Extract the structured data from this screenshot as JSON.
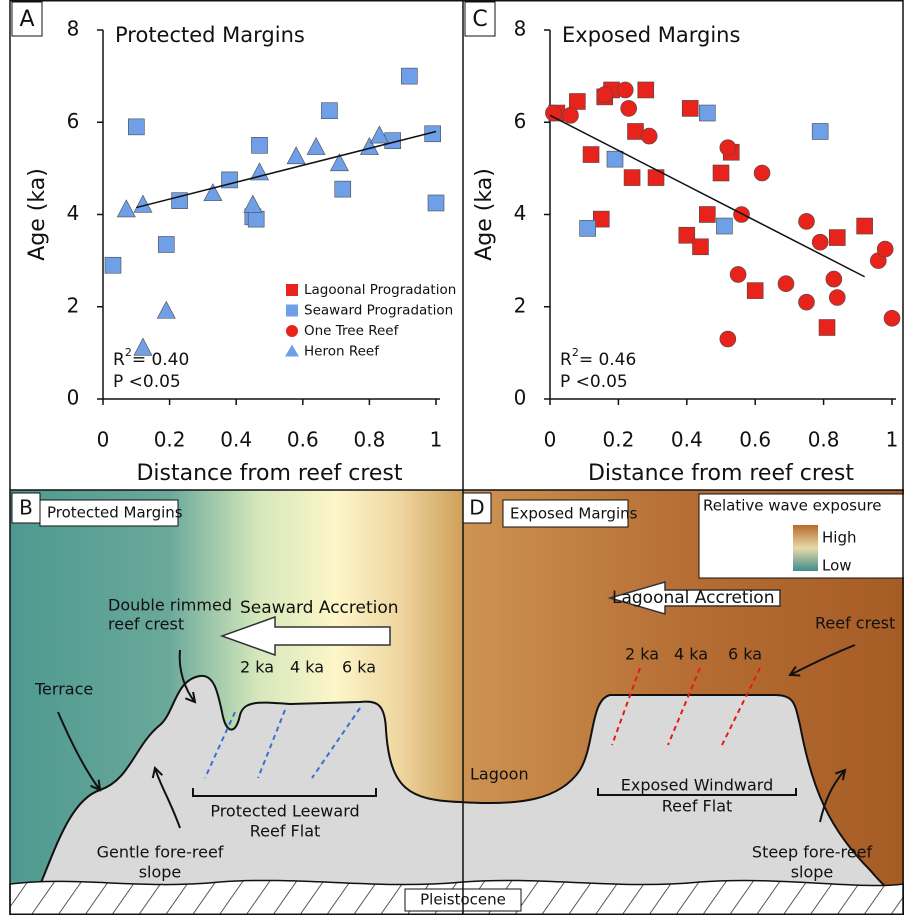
{
  "chart_data": [
    {
      "type": "scatter",
      "panel_label": "A",
      "title": "Protected Margins",
      "x_label": "Distance from reef crest",
      "y_label": "Age (ka)",
      "xlim": [
        0,
        1
      ],
      "ylim": [
        0,
        8
      ],
      "xticks": [
        0,
        0.2,
        0.4,
        0.6,
        0.8,
        1
      ],
      "yticks": [
        0,
        2,
        4,
        6,
        8
      ],
      "series": [
        {
          "color": "#6f9fe6",
          "marker": "square",
          "x": [
            0.1,
            0.03,
            0.19,
            0.23,
            0.38,
            0.45,
            0.46,
            0.47,
            0.68,
            0.72,
            0.87,
            0.92,
            0.99,
            1.0
          ],
          "y": [
            5.9,
            2.9,
            3.35,
            4.3,
            4.75,
            3.95,
            3.9,
            5.5,
            6.25,
            4.55,
            5.6,
            7.0,
            5.75,
            4.25
          ]
        },
        {
          "color": "#6f9fe6",
          "marker": "triangle",
          "x": [
            0.07,
            0.12,
            0.12,
            0.19,
            0.33,
            0.45,
            0.47,
            0.58,
            0.64,
            0.71,
            0.8,
            0.83
          ],
          "y": [
            4.1,
            4.2,
            1.1,
            1.9,
            4.45,
            4.2,
            4.9,
            5.25,
            5.45,
            5.1,
            5.45,
            5.7
          ]
        }
      ],
      "trendline": {
        "x": [
          0.1,
          1.0
        ],
        "y": [
          4.15,
          5.8
        ]
      },
      "stats": {
        "r_symbol": "R",
        "r_exponent": "2",
        "r_value": "= 0.40",
        "p": "P <0.05"
      },
      "legend": [
        {
          "label": "Lagoonal Progradation",
          "color": "#e8231c",
          "marker": "square"
        },
        {
          "label": "Seaward Progradation",
          "color": "#6f9fe6",
          "marker": "square"
        },
        {
          "label": "One Tree Reef",
          "color": "#e8231c",
          "marker": "circle"
        },
        {
          "label": "Heron Reef",
          "color": "#6f9fe6",
          "marker": "triangle"
        }
      ]
    },
    {
      "type": "scatter",
      "panel_label": "C",
      "title": "Exposed Margins",
      "x_label": "Distance from reef crest",
      "y_label": "Age (ka)",
      "xlim": [
        0,
        1
      ],
      "ylim": [
        0,
        8
      ],
      "xticks": [
        0,
        0.2,
        0.4,
        0.6,
        0.8,
        1
      ],
      "yticks": [
        0,
        2,
        4,
        6,
        8
      ],
      "series": [
        {
          "color": "#e8231c",
          "marker": "square",
          "x": [
            0.02,
            0.08,
            0.12,
            0.15,
            0.16,
            0.18,
            0.24,
            0.25,
            0.28,
            0.31,
            0.41,
            0.4,
            0.44,
            0.46,
            0.5,
            0.53,
            0.6,
            0.81,
            0.84,
            0.92
          ],
          "y": [
            6.2,
            6.45,
            5.3,
            3.9,
            6.55,
            6.7,
            4.8,
            5.8,
            6.7,
            4.8,
            6.3,
            3.55,
            3.3,
            4.0,
            4.9,
            5.35,
            2.35,
            1.55,
            3.5,
            3.75
          ]
        },
        {
          "color": "#e8231c",
          "marker": "circle",
          "x": [
            0.01,
            0.06,
            0.16,
            0.22,
            0.23,
            0.29,
            0.52,
            0.52,
            0.55,
            0.56,
            0.62,
            0.69,
            0.75,
            0.75,
            0.79,
            0.83,
            0.84,
            0.96,
            0.98,
            1.0
          ],
          "y": [
            6.2,
            6.15,
            6.6,
            6.7,
            6.3,
            5.7,
            5.45,
            1.3,
            2.7,
            4.0,
            4.9,
            2.5,
            3.85,
            2.1,
            3.4,
            2.6,
            2.2,
            3.0,
            3.25,
            1.75
          ]
        },
        {
          "color": "#6f9fe6",
          "marker": "square",
          "x": [
            0.11,
            0.19,
            0.46,
            0.51,
            0.79
          ],
          "y": [
            3.7,
            5.2,
            6.2,
            3.75,
            5.8
          ]
        }
      ],
      "trendline": {
        "x": [
          0.0,
          0.92
        ],
        "y": [
          6.15,
          2.65
        ]
      },
      "stats": {
        "r_symbol": "R",
        "r_exponent": "2",
        "r_value": "= 0.46",
        "p": "P <0.05"
      }
    }
  ],
  "diagrams": [
    {
      "panel_label": "B",
      "title": "Protected Margins",
      "crest": [
        "Double rimmed",
        "reef crest"
      ],
      "accretion": "Seaward Accretion",
      "ages": [
        "2 ka",
        "4 ka",
        "6 ka"
      ],
      "terrace": "Terrace",
      "flat": [
        "Protected Leeward",
        "Reef Flat"
      ],
      "slope": [
        "Gentle fore-reef",
        "slope"
      ]
    },
    {
      "panel_label": "D",
      "title": "Exposed Margins",
      "exposure_title": "Relative wave exposure",
      "high": "High",
      "low": "Low",
      "accretion": "Lagoonal Accretion",
      "crest": "Reef crest",
      "ages": [
        "2 ka",
        "4 ka",
        "6 ka"
      ],
      "lagoon": "Lagoon",
      "flat": [
        "Exposed Windward",
        "Reef Flat"
      ],
      "slope": [
        "Steep fore-reef",
        "slope"
      ]
    }
  ],
  "base_label": "Pleistocene"
}
